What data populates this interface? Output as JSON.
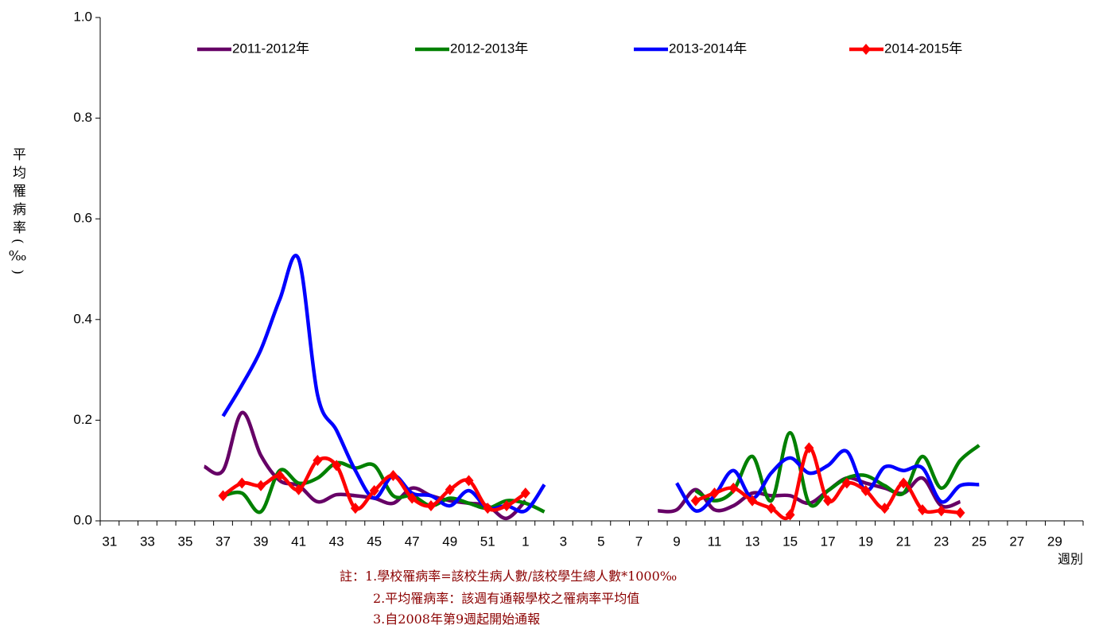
{
  "chart_data": {
    "type": "line",
    "y_label": "平均罹病率(‰)",
    "x_label": "週別",
    "categories": [
      "31",
      null,
      "33",
      null,
      "35",
      null,
      "37",
      null,
      "39",
      null,
      "41",
      null,
      "43",
      null,
      "45",
      null,
      "47",
      null,
      "49",
      null,
      "51",
      null,
      "1",
      null,
      "3",
      null,
      "5",
      null,
      "7",
      null,
      "9",
      null,
      "11",
      null,
      "13",
      null,
      "15",
      null,
      "17",
      null,
      "19",
      null,
      "21",
      null,
      "23",
      null,
      "25",
      null,
      "27",
      null,
      "29",
      null
    ],
    "series": [
      {
        "name": "2011-2012年",
        "color": "#660066",
        "values": [
          null,
          null,
          null,
          null,
          null,
          0.108,
          0.1,
          0.215,
          0.13,
          0.08,
          0.07,
          0.038,
          0.052,
          0.05,
          0.045,
          0.035,
          0.065,
          0.05,
          0.04,
          0.035,
          0.03,
          0.005,
          0.04,
          null,
          null,
          null,
          null,
          null,
          null,
          0.02,
          0.022,
          0.062,
          0.022,
          0.03,
          0.055,
          0.05,
          0.05,
          0.035,
          0.06,
          0.085,
          0.075,
          0.065,
          0.055,
          0.085,
          0.03,
          0.038,
          null,
          null,
          null,
          null,
          null,
          null
        ]
      },
      {
        "name": "2012-2013年",
        "color": "#008000",
        "values": [
          null,
          null,
          null,
          null,
          null,
          null,
          0.05,
          0.055,
          0.018,
          0.1,
          0.075,
          0.085,
          0.115,
          0.105,
          0.11,
          0.05,
          0.05,
          0.03,
          0.045,
          0.035,
          0.025,
          0.04,
          0.035,
          0.018,
          null,
          null,
          null,
          null,
          null,
          null,
          null,
          0.06,
          0.04,
          0.06,
          0.128,
          0.04,
          0.175,
          0.035,
          0.06,
          0.085,
          0.09,
          0.07,
          0.055,
          0.128,
          0.065,
          0.12,
          0.15,
          null,
          null,
          null,
          null,
          null
        ]
      },
      {
        "name": "2013-2014年",
        "color": "#0000ff",
        "values": [
          null,
          null,
          null,
          null,
          null,
          null,
          0.208,
          0.27,
          0.34,
          0.44,
          0.52,
          0.25,
          0.18,
          0.1,
          0.045,
          0.09,
          0.055,
          0.05,
          0.03,
          0.06,
          0.025,
          0.03,
          0.02,
          0.072,
          null,
          null,
          null,
          null,
          null,
          null,
          0.075,
          0.02,
          0.05,
          0.1,
          0.045,
          0.095,
          0.125,
          0.095,
          0.11,
          0.138,
          0.06,
          0.107,
          0.1,
          0.105,
          0.038,
          0.07,
          0.072,
          null,
          null,
          null,
          null,
          null
        ]
      },
      {
        "name": "2014-2015年",
        "color": "#ff0000",
        "marker": "diamond",
        "values": [
          null,
          null,
          null,
          null,
          null,
          null,
          0.05,
          0.075,
          0.07,
          0.09,
          0.062,
          0.12,
          0.11,
          0.025,
          0.06,
          0.09,
          0.045,
          0.03,
          0.062,
          0.08,
          0.025,
          0.03,
          0.055,
          null,
          null,
          null,
          null,
          null,
          null,
          null,
          null,
          0.04,
          0.055,
          0.065,
          0.04,
          0.025,
          0.012,
          0.145,
          0.04,
          0.075,
          0.06,
          0.025,
          0.075,
          0.022,
          0.02,
          0.016,
          null,
          null,
          null,
          null,
          null,
          null
        ]
      }
    ],
    "ylim": [
      0,
      1
    ],
    "yticks": [
      {
        "value": 0,
        "label": "0.0"
      },
      0.2,
      0.4,
      0.6,
      0.8,
      {
        "value": 1,
        "label": "1.0"
      }
    ],
    "legend": "top",
    "grid": false,
    "notes": [
      "註：1.學校罹病率=該校生病人數/該校學生總人數*1000‰",
      "2.平均罹病率：該週有通報學校之罹病率平均值",
      "3.自2008年第9週起開始通報"
    ]
  }
}
